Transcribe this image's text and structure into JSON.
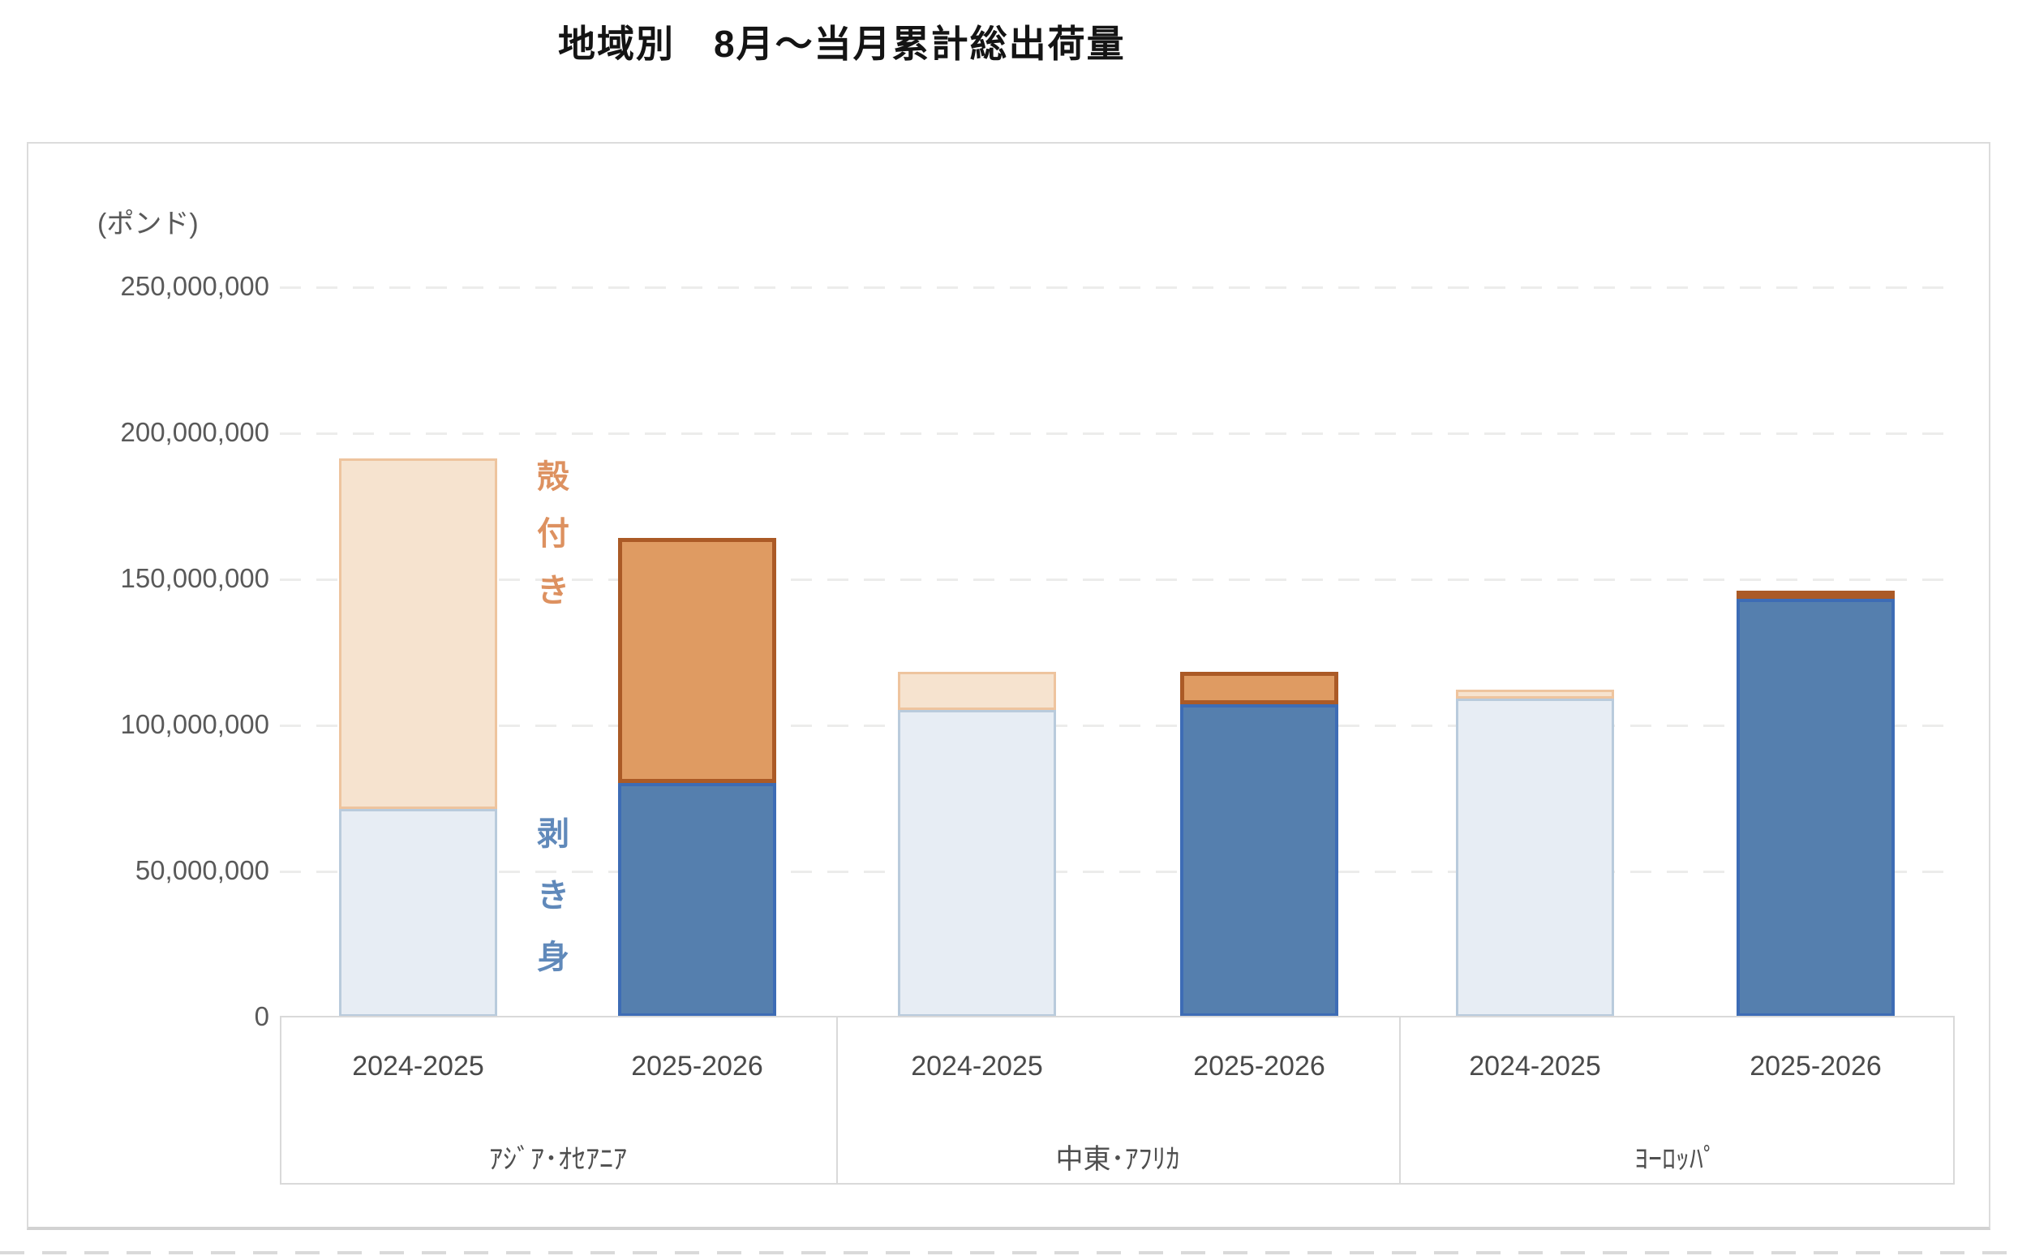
{
  "title": "地域別　8月～当月累計総出荷量",
  "y_axis": {
    "unit_label": "(ポンド)",
    "tick_labels": [
      "250,000,000",
      "200,000,000",
      "150,000,000",
      "100,000,000",
      "50,000,000",
      "0"
    ]
  },
  "legend": {
    "shell_on_label": "殻付き",
    "peeled_label": "剥き身"
  },
  "colors": {
    "title_text": "#141414",
    "axis_text": "#595959",
    "category_text": "#4a4a4a",
    "gridline": "#ececeb",
    "axis_line": "#d9d9d9",
    "light_blue_fill": "#e7edf4",
    "light_blue_border": "#b9cbdc",
    "light_orange_fill": "#f6e3cf",
    "light_orange_border": "#eec49e",
    "dark_blue_fill": "#557fae",
    "dark_blue_border": "#3d6cb5",
    "dark_orange_fill": "#df9b62",
    "dark_orange_border": "#ab5a26",
    "legend_shell_text": "#dd9160",
    "legend_peeled_text": "#6089ba"
  },
  "chart_data": {
    "type": "bar",
    "stacked": true,
    "title": "地域別　8月～当月累計総出荷量",
    "unit": "ポンド",
    "ylim": [
      0,
      250000000
    ],
    "y_tick_interval": 50000000,
    "grid": "horizontal-dashed",
    "groups": [
      "ｱｼﾞｱ･ｵｾｱﾆｱ",
      "中東･ｱﾌﾘｶ",
      "ﾖｰﾛｯﾊﾟ"
    ],
    "categories": [
      "2024-2025",
      "2025-2026",
      "2024-2025",
      "2025-2026",
      "2024-2025",
      "2025-2026"
    ],
    "series": [
      {
        "name": "剥き身",
        "values": [
          71000000,
          80000000,
          105000000,
          107000000,
          109000000,
          143000000
        ]
      },
      {
        "name": "殻付き",
        "values": [
          120000000,
          84000000,
          13000000,
          11000000,
          3000000,
          2000000
        ]
      }
    ],
    "totals": [
      191000000,
      164000000,
      118000000,
      118000000,
      112000000,
      145000000
    ],
    "bar_styles": [
      "light",
      "dark",
      "light",
      "dark",
      "light",
      "dark"
    ],
    "legend_position": "inline-beside-first-group"
  }
}
